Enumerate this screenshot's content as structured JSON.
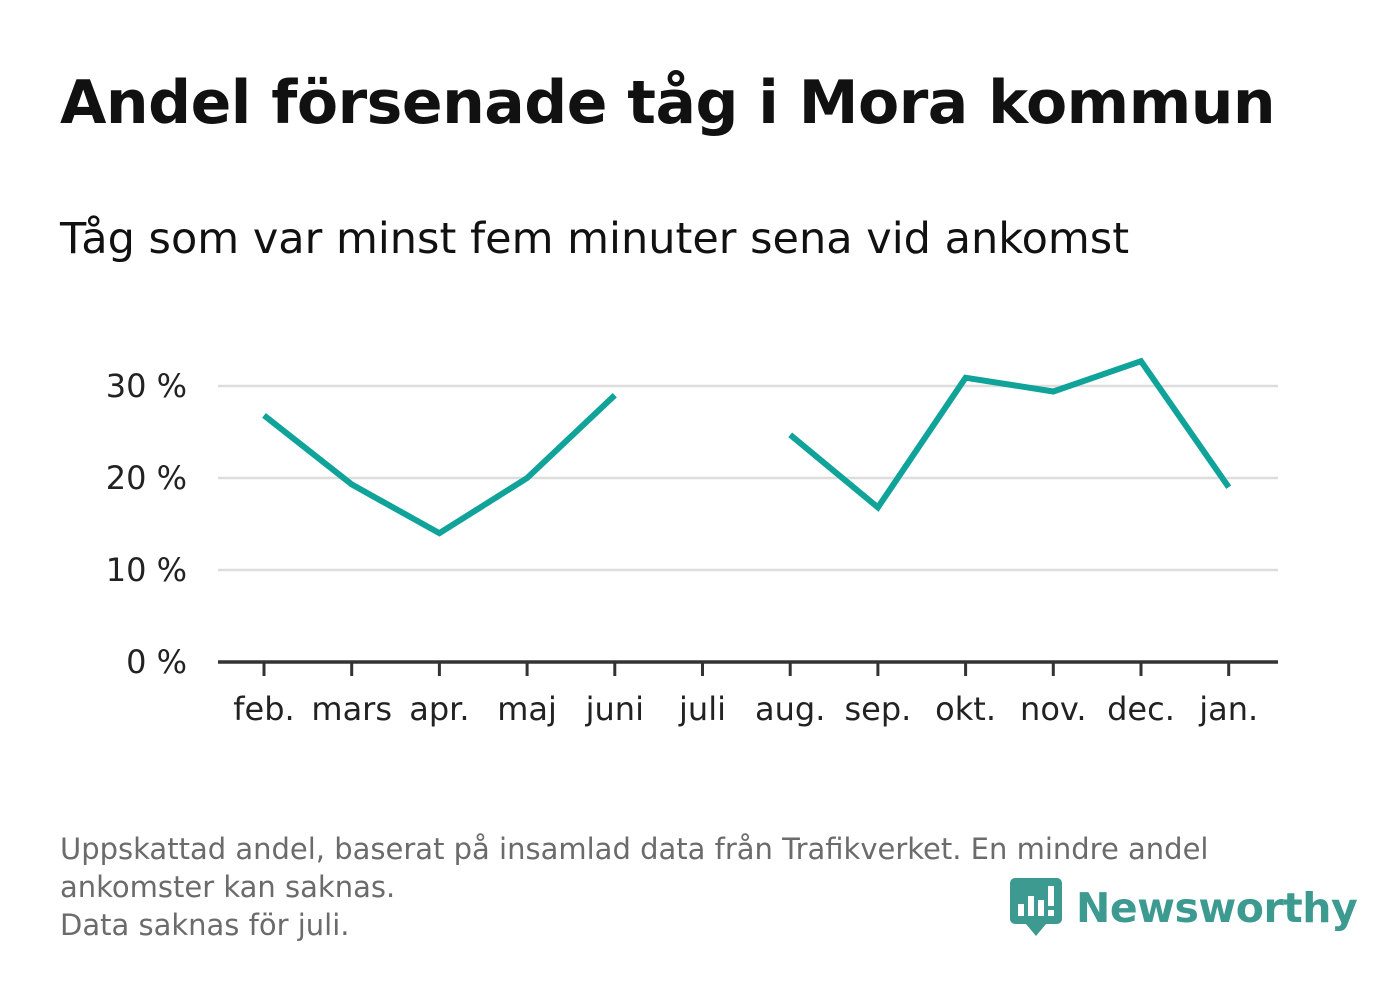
{
  "header": {
    "title": "Andel försenade tåg i Mora kommun",
    "subtitle": "Tåg som var minst fem minuter sena vid ankomst"
  },
  "chart_data": {
    "type": "line",
    "title": "Andel försenade tåg i Mora kommun",
    "subtitle": "Tåg som var minst fem minuter sena vid ankomst",
    "xlabel": "",
    "ylabel": "",
    "categories": [
      "feb.",
      "mars",
      "apr.",
      "maj",
      "juni",
      "juli",
      "aug.",
      "sep.",
      "okt.",
      "nov.",
      "dec.",
      "jan."
    ],
    "series": [
      {
        "values": [
          26.8,
          19.3,
          14.0,
          20.0,
          29.0,
          null,
          24.7,
          16.8,
          30.9,
          29.4,
          32.7,
          19.0
        ]
      }
    ],
    "ylim": [
      0,
      35
    ],
    "yticks": [
      0,
      10,
      20,
      30
    ],
    "ytick_labels": [
      "0 %",
      "10 %",
      "20 %",
      "30 %"
    ],
    "grid": true,
    "line_color": "#0fa39a",
    "grid_color": "#dddddd",
    "axis_color": "#333333"
  },
  "footer": {
    "note_line1": "Uppskattad andel, baserat på insamlad data från Trafikverket. En mindre andel",
    "note_line2": "ankomster kan saknas.",
    "note_line3": "Data saknas för juli.",
    "brand": "Newsworthy",
    "brand_color": "#3d9a90",
    "brand_icon": "newsworthy-logo-icon"
  }
}
